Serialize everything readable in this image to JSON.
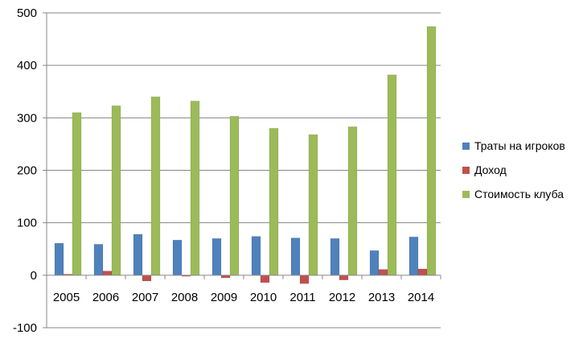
{
  "chart_data": {
    "type": "bar",
    "categories": [
      "2005",
      "2006",
      "2007",
      "2008",
      "2009",
      "2010",
      "2011",
      "2012",
      "2013",
      "2014"
    ],
    "series": [
      {
        "name": "Траты на игроков",
        "color": "#4f81bd",
        "values": [
          61,
          59,
          78,
          67,
          70,
          74,
          71,
          70,
          47,
          73
        ]
      },
      {
        "name": "Доход",
        "color": "#c0504d",
        "values": [
          2,
          8,
          -11,
          -2,
          -5,
          -14,
          -16,
          -9,
          11,
          12
        ]
      },
      {
        "name": "Стоимость клуба",
        "color": "#9bbb59",
        "values": [
          310,
          323,
          340,
          332,
          303,
          280,
          268,
          283,
          382,
          474
        ]
      }
    ],
    "ylim": [
      -100,
      500
    ],
    "yticks": [
      "-100",
      "0",
      "100",
      "200",
      "300",
      "400",
      "500"
    ],
    "grid": true,
    "legend_position": "right",
    "title": "",
    "xlabel": "",
    "ylabel": ""
  }
}
